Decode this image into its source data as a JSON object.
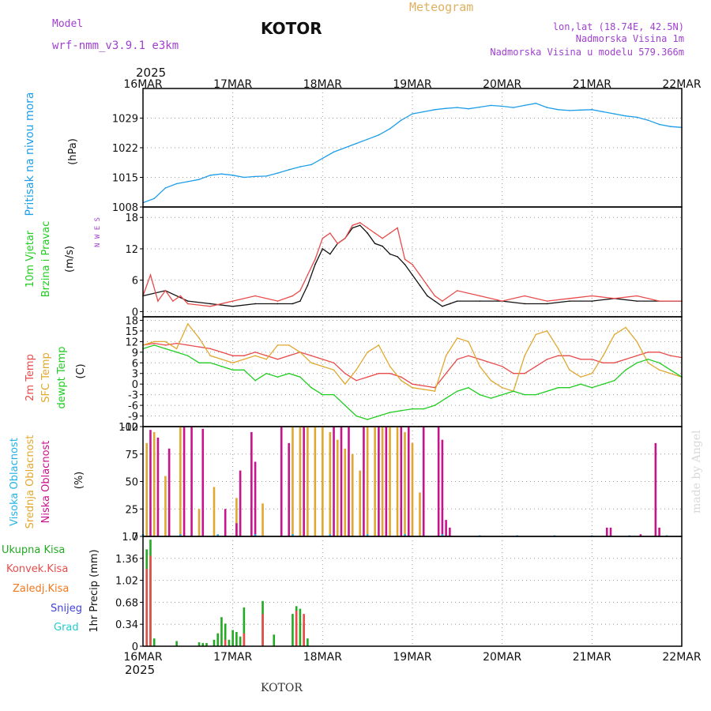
{
  "header": {
    "model_label": "Model",
    "model_name": "wrf-nmm_v3.9.1 e3km",
    "city": "KOTOR",
    "title": "Meteogram",
    "coords": "lon,lat (18.74E, 42.5N)",
    "elevation": "Nadmorska Visina 1m",
    "model_elevation": "Nadmorska Visina u modelu 579.366m",
    "year": "2025",
    "footer_city": "KOTOR",
    "credit": "made by Angel"
  },
  "colors": {
    "pressure": "#1e9ee8",
    "temp2m": "#e84b4b",
    "sfc": "#e0a830",
    "dewpt": "#22cc22",
    "high_cloud": "#22b2e8",
    "mid_cloud": "#e0a830",
    "low_cloud": "#c8148c",
    "total_precip": "#22aa22",
    "convective": "#e84b4b",
    "frozen": "#f07820",
    "snow": "#4040e0",
    "graupel": "#22cccc",
    "purple": "#a040d0"
  },
  "chart_data": {
    "type": "meteogram",
    "x_ticks": [
      "16MAR",
      "17MAR",
      "18MAR",
      "19MAR",
      "20MAR",
      "21MAR",
      "22MAR"
    ],
    "x_range_hours": [
      0,
      144
    ],
    "panels": [
      {
        "type": "line",
        "label": "Pritisak na nivou mora",
        "unit": "(hPa)",
        "ylim": [
          1008,
          1036
        ],
        "yticks": [
          1008,
          1015,
          1022,
          1029
        ],
        "series": [
          {
            "name": "pressure",
            "color_key": "pressure",
            "x": [
              0,
              3,
              6,
              9,
              12,
              15,
              18,
              21,
              24,
              27,
              30,
              33,
              36,
              39,
              42,
              45,
              48,
              51,
              54,
              57,
              60,
              63,
              66,
              69,
              72,
              75,
              78,
              81,
              84,
              87,
              90,
              93,
              96,
              99,
              102,
              105,
              108,
              111,
              114,
              117,
              120,
              123,
              126,
              129,
              132,
              135,
              138,
              141,
              144
            ],
            "y": [
              1009,
              1010,
              1012.5,
              1013.5,
              1014,
              1014.5,
              1015.5,
              1015.8,
              1015.5,
              1015,
              1015.2,
              1015.3,
              1016,
              1016.8,
              1017.5,
              1018,
              1019.5,
              1021,
              1022,
              1023,
              1024,
              1025,
              1026.5,
              1028.5,
              1030,
              1030.5,
              1031,
              1031.3,
              1031.5,
              1031.2,
              1031.6,
              1032,
              1031.8,
              1031.5,
              1032,
              1032.5,
              1031.5,
              1031,
              1030.8,
              1030.9,
              1031,
              1030.5,
              1030,
              1029.5,
              1029.2,
              1028.5,
              1027.5,
              1027,
              1026.8
            ]
          }
        ]
      },
      {
        "type": "line",
        "label_lines": [
          "10m Vjetar",
          "Brzina i Pravac"
        ],
        "unit": "(m/s)",
        "compass": "N W E S",
        "ylim": [
          -1,
          20
        ],
        "yticks": [
          0,
          6,
          12,
          18
        ],
        "series": [
          {
            "name": "wind_speed",
            "color": "#111111",
            "x": [
              0,
              6,
              12,
              18,
              24,
              30,
              36,
              40,
              42,
              44,
              46,
              48,
              50,
              52,
              54,
              56,
              58,
              60,
              62,
              64,
              66,
              68,
              70,
              72,
              74,
              76,
              78,
              80,
              82,
              84,
              90,
              96,
              102,
              108,
              114,
              120,
              126,
              132,
              138,
              144
            ],
            "y": [
              3,
              4,
              2,
              1.5,
              1,
              1.5,
              1.5,
              1.5,
              2,
              5,
              9,
              12,
              11,
              13,
              14,
              16,
              16.5,
              15,
              13,
              12.5,
              11,
              10.5,
              9,
              7,
              5,
              3,
              2,
              1,
              1.5,
              2,
              2,
              2,
              1.5,
              1.5,
              2,
              2,
              2.5,
              2,
              2,
              2
            ]
          },
          {
            "name": "gust",
            "color_key": "temp2m",
            "x": [
              0,
              2,
              4,
              6,
              8,
              10,
              12,
              18,
              24,
              30,
              36,
              40,
              42,
              44,
              46,
              48,
              50,
              52,
              54,
              56,
              58,
              60,
              62,
              64,
              66,
              68,
              70,
              72,
              74,
              76,
              78,
              80,
              84,
              90,
              96,
              102,
              108,
              114,
              120,
              126,
              132,
              138,
              144
            ],
            "y": [
              3,
              7,
              2,
              4,
              2,
              3,
              1.5,
              1,
              2,
              3,
              2,
              3,
              4,
              7,
              10,
              14,
              15,
              13,
              14,
              16.5,
              17,
              16,
              15,
              14,
              15,
              16,
              10,
              9,
              7,
              5,
              3,
              2,
              4,
              3,
              2,
              3,
              2,
              2.5,
              3,
              2.5,
              3,
              2,
              2
            ]
          }
        ]
      },
      {
        "type": "line",
        "label_lines": [
          "2m Temp",
          "SFC Temp",
          "dewpt Temp"
        ],
        "unit": "(C)",
        "ylim": [
          -12,
          19
        ],
        "yticks": [
          -12,
          -9,
          -6,
          -3,
          0,
          3,
          6,
          9,
          12,
          15,
          18
        ],
        "series": [
          {
            "name": "2m Temp",
            "color_key": "temp2m",
            "x": [
              0,
              3,
              6,
              9,
              12,
              15,
              18,
              21,
              24,
              27,
              30,
              33,
              36,
              39,
              42,
              45,
              48,
              51,
              54,
              57,
              60,
              63,
              66,
              69,
              72,
              75,
              78,
              81,
              84,
              87,
              90,
              93,
              96,
              99,
              102,
              105,
              108,
              111,
              114,
              117,
              120,
              123,
              126,
              129,
              132,
              135,
              138,
              141,
              144
            ],
            "y": [
              11,
              11.5,
              11,
              11.5,
              11,
              10.5,
              10,
              9,
              8,
              8,
              9,
              8,
              7,
              8,
              9,
              8,
              7,
              6,
              3,
              1,
              2,
              3,
              3,
              2,
              0,
              -0.5,
              -1,
              3,
              7,
              8,
              7,
              6,
              5,
              3,
              3,
              5,
              7,
              8,
              8,
              7,
              7,
              6,
              6,
              7,
              8,
              9,
              9,
              8,
              7.5
            ]
          },
          {
            "name": "SFC Temp",
            "color_key": "sfc",
            "x": [
              0,
              3,
              6,
              9,
              12,
              15,
              18,
              21,
              24,
              27,
              30,
              33,
              36,
              39,
              42,
              45,
              48,
              51,
              54,
              57,
              60,
              63,
              66,
              69,
              72,
              75,
              78,
              81,
              84,
              87,
              90,
              93,
              96,
              99,
              102,
              105,
              108,
              111,
              114,
              117,
              120,
              123,
              126,
              129,
              132,
              135,
              138,
              141,
              144
            ],
            "y": [
              11,
              12,
              12,
              10,
              17,
              13,
              8,
              7,
              6,
              7,
              8,
              7,
              11,
              11,
              9,
              6,
              5,
              4,
              0,
              4,
              9,
              11,
              5,
              1,
              -1,
              -1.5,
              -2,
              8,
              13,
              12,
              5,
              1,
              -1,
              -2,
              8,
              14,
              15,
              10,
              4,
              2,
              3,
              8,
              14,
              16,
              12,
              6,
              4,
              3,
              2
            ]
          },
          {
            "name": "dewpt Temp",
            "color_key": "dewpt",
            "x": [
              0,
              3,
              6,
              9,
              12,
              15,
              18,
              21,
              24,
              27,
              30,
              33,
              36,
              39,
              42,
              45,
              48,
              51,
              54,
              57,
              60,
              63,
              66,
              69,
              72,
              75,
              78,
              81,
              84,
              87,
              90,
              93,
              96,
              99,
              102,
              105,
              108,
              111,
              114,
              117,
              120,
              123,
              126,
              129,
              132,
              135,
              138,
              141,
              144
            ],
            "y": [
              10,
              11,
              10,
              9,
              8,
              6,
              6,
              5,
              4,
              4,
              1,
              3,
              2,
              3,
              2,
              -1,
              -3,
              -3,
              -6,
              -9,
              -10,
              -9,
              -8,
              -7.5,
              -7,
              -7,
              -6,
              -4,
              -2,
              -1,
              -3,
              -4,
              -3,
              -2,
              -3,
              -3,
              -2,
              -1,
              -1,
              0,
              -1,
              0,
              1,
              4,
              6,
              7,
              6,
              4,
              2
            ]
          }
        ]
      },
      {
        "type": "bar",
        "label_lines": [
          "Visoka Oblacnost",
          "Srednja Oblacnost",
          "Niska Oblacnost"
        ],
        "unit": "(%)",
        "ylim": [
          0,
          100
        ],
        "yticks": [
          0,
          25,
          50,
          75,
          100
        ],
        "series": [
          {
            "name": "Srednja Oblacnost",
            "color_key": "mid_cloud",
            "x": [
              1,
              3,
              6,
              10,
              15,
              19,
              25,
              32,
              40,
              42,
              44,
              46,
              48,
              50,
              52,
              54,
              56,
              58,
              60,
              62,
              64,
              66,
              68,
              70,
              72,
              74
            ],
            "y": [
              85,
              95,
              55,
              100,
              25,
              45,
              35,
              30,
              100,
              100,
              100,
              100,
              100,
              95,
              88,
              80,
              75,
              60,
              100,
              100,
              100,
              100,
              100,
              95,
              85,
              40
            ]
          },
          {
            "name": "Niska Oblacnost",
            "color_key": "low_cloud",
            "x": [
              2,
              4,
              7,
              11,
              13,
              16,
              22,
              25,
              26,
              29,
              30,
              37,
              39,
              43,
              51,
              53,
              55,
              59,
              63,
              65,
              69,
              71,
              75,
              79,
              80,
              81,
              82,
              124,
              125,
              133,
              137,
              138
            ],
            "y": [
              97,
              90,
              80,
              100,
              100,
              98,
              25,
              12,
              60,
              95,
              68,
              100,
              85,
              100,
              100,
              100,
              100,
              100,
              100,
              100,
              100,
              100,
              100,
              100,
              88,
              15,
              8,
              8,
              8,
              2,
              85,
              8
            ]
          },
          {
            "name": "Visoka Oblacnost",
            "color_key": "high_cloud",
            "x": [
              0,
              10,
              20,
              30,
              40,
              50,
              60,
              70,
              80,
              90,
              100,
              110,
              120,
              130,
              140
            ],
            "y": [
              2,
              2,
              2,
              2,
              2,
              2,
              2,
              2,
              2,
              1,
              1,
              1,
              1,
              1,
              1
            ]
          }
        ]
      },
      {
        "type": "bar",
        "label_lines": [
          "Ukupna Kisa",
          "Konvek.Kisa",
          "Zaledj.Kisa",
          "Snijeg",
          "Grad"
        ],
        "unit": "1hr Precip (mm)",
        "ylim": [
          0,
          1.7
        ],
        "yticks": [
          0,
          0.34,
          0.68,
          1.02,
          1.36,
          1.7
        ],
        "series": [
          {
            "name": "Ukupna Kisa",
            "color_key": "total_precip",
            "x": [
              1,
              2,
              3,
              9,
              15,
              16,
              17,
              19,
              20,
              21,
              22,
              23,
              24,
              25,
              26,
              27,
              32,
              35,
              40,
              41,
              42,
              43,
              44
            ],
            "y": [
              1.5,
              1.65,
              0.12,
              0.08,
              0.06,
              0.05,
              0.05,
              0.1,
              0.2,
              0.45,
              0.35,
              0.1,
              0.25,
              0.22,
              0.15,
              0.6,
              0.7,
              0.18,
              0.5,
              0.62,
              0.58,
              0.35,
              0.12
            ]
          },
          {
            "name": "Konvek.Kisa",
            "color_key": "convective",
            "x": [
              1,
              2,
              22,
              27,
              32,
              41,
              43
            ],
            "y": [
              1.2,
              1.4,
              0.1,
              0.2,
              0.5,
              0.55,
              0.5
            ]
          },
          {
            "name": "Zaledj.Kisa",
            "color_key": "frozen",
            "x": [],
            "y": []
          },
          {
            "name": "Snijeg",
            "color_key": "snow",
            "x": [],
            "y": []
          },
          {
            "name": "Grad",
            "color_key": "graupel",
            "x": [],
            "y": []
          }
        ]
      }
    ]
  }
}
